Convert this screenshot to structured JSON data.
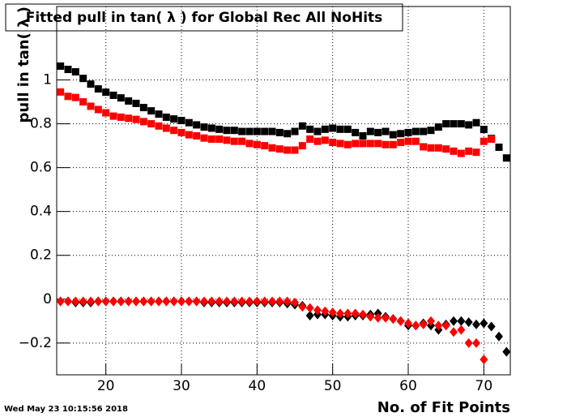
{
  "chart_data": {
    "type": "scatter",
    "title": "Fitted pull in tan( λ ) for Global Rec All NoHits",
    "y_label": "pull in tan( λ )",
    "x_label": "No. of Fit Points",
    "timestamp": "Wed May 23 10:15:56 2018",
    "x": [
      14,
      15,
      16,
      17,
      18,
      19,
      20,
      21,
      22,
      23,
      24,
      25,
      26,
      27,
      28,
      29,
      30,
      31,
      32,
      33,
      34,
      35,
      36,
      37,
      38,
      39,
      40,
      41,
      42,
      43,
      44,
      45,
      46,
      47,
      48,
      49,
      50,
      51,
      52,
      53,
      54,
      55,
      56,
      57,
      58,
      59,
      60,
      61,
      62,
      63,
      64,
      65,
      66,
      67,
      68,
      69,
      70,
      71,
      72,
      73
    ],
    "series": [
      {
        "color": "#000000",
        "marker": "square",
        "values": [
          1.063,
          1.048,
          1.037,
          1.007,
          0.981,
          0.959,
          0.944,
          0.93,
          0.918,
          0.904,
          0.893,
          0.874,
          0.859,
          0.844,
          0.83,
          0.822,
          0.815,
          0.805,
          0.795,
          0.785,
          0.78,
          0.775,
          0.77,
          0.77,
          0.765,
          0.765,
          0.765,
          0.765,
          0.765,
          0.76,
          0.755,
          0.765,
          0.79,
          0.775,
          0.765,
          0.775,
          0.78,
          0.775,
          0.775,
          0.76,
          0.745,
          0.765,
          0.76,
          0.765,
          0.75,
          0.755,
          0.76,
          0.765,
          0.765,
          0.77,
          0.785,
          0.8,
          0.8,
          0.8,
          0.795,
          0.805,
          0.774,
          0.733,
          0.693,
          0.644
        ]
      },
      {
        "color": "#ff0000",
        "marker": "square",
        "values": [
          0.945,
          0.925,
          0.92,
          0.9,
          0.88,
          0.865,
          0.85,
          0.835,
          0.83,
          0.825,
          0.82,
          0.81,
          0.8,
          0.79,
          0.78,
          0.77,
          0.76,
          0.75,
          0.745,
          0.735,
          0.73,
          0.73,
          0.725,
          0.72,
          0.72,
          0.71,
          0.705,
          0.7,
          0.69,
          0.685,
          0.68,
          0.68,
          0.7,
          0.73,
          0.72,
          0.725,
          0.715,
          0.71,
          0.705,
          0.71,
          0.71,
          0.71,
          0.71,
          0.705,
          0.705,
          0.715,
          0.72,
          0.72,
          0.695,
          0.69,
          0.69,
          0.685,
          0.675,
          0.665,
          0.675,
          0.67,
          0.72,
          0.73,
          null,
          null
        ]
      },
      {
        "color": "#000000",
        "marker": "diamond",
        "values": [
          -0.01,
          -0.01,
          -0.015,
          -0.015,
          -0.015,
          -0.01,
          -0.01,
          -0.01,
          -0.01,
          -0.01,
          -0.01,
          -0.01,
          -0.01,
          -0.01,
          -0.01,
          -0.01,
          -0.01,
          -0.01,
          -0.01,
          -0.015,
          -0.015,
          -0.015,
          -0.015,
          -0.015,
          -0.015,
          -0.015,
          -0.015,
          -0.015,
          -0.015,
          -0.015,
          -0.02,
          -0.025,
          -0.03,
          -0.075,
          -0.07,
          -0.07,
          -0.075,
          -0.08,
          -0.08,
          -0.075,
          -0.075,
          -0.07,
          -0.065,
          -0.08,
          -0.09,
          -0.1,
          -0.12,
          -0.12,
          -0.11,
          -0.12,
          -0.14,
          -0.115,
          -0.1,
          -0.1,
          -0.105,
          -0.115,
          -0.11,
          -0.125,
          -0.17,
          -0.24
        ]
      },
      {
        "color": "#ff0000",
        "marker": "diamond",
        "values": [
          -0.01,
          -0.01,
          -0.01,
          -0.01,
          -0.01,
          -0.01,
          -0.01,
          -0.01,
          -0.01,
          -0.01,
          -0.01,
          -0.01,
          -0.01,
          -0.01,
          -0.01,
          -0.01,
          -0.01,
          -0.01,
          -0.01,
          -0.01,
          -0.01,
          -0.01,
          -0.01,
          -0.01,
          -0.01,
          -0.01,
          -0.01,
          -0.01,
          -0.01,
          -0.01,
          -0.01,
          -0.015,
          -0.035,
          -0.04,
          -0.05,
          -0.055,
          -0.06,
          -0.065,
          -0.065,
          -0.065,
          -0.07,
          -0.08,
          -0.085,
          -0.085,
          -0.09,
          -0.1,
          -0.11,
          -0.12,
          -0.115,
          -0.1,
          -0.12,
          -0.12,
          -0.15,
          -0.14,
          -0.2,
          -0.2,
          -0.275,
          null,
          null,
          null
        ]
      }
    ],
    "xlim": [
      13.5,
      73.5
    ],
    "ylim": [
      -0.345,
      1.335
    ],
    "xticks": [
      20,
      30,
      40,
      50,
      60,
      70
    ],
    "yticks": [
      {
        "value": -0.2,
        "label": "−0.2"
      },
      0,
      0.2,
      0.4,
      0.6,
      0.8,
      1
    ],
    "grid": true
  }
}
